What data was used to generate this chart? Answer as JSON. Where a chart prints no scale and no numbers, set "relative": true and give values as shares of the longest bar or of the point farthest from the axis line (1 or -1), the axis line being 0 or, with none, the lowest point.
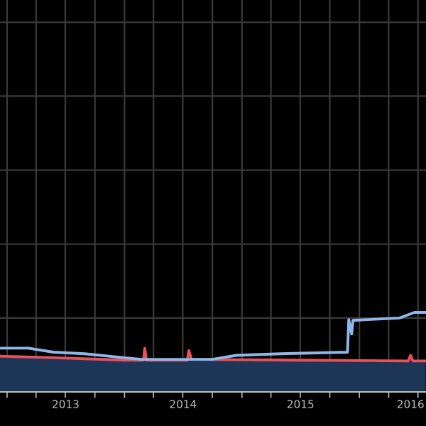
{
  "chart_data": {
    "type": "line",
    "relative": true,
    "grid": true,
    "xlim": [
      "2012-12-10",
      "2016-07-26"
    ],
    "xticks": [
      {
        "value": "2013-07-02",
        "label": "2013"
      },
      {
        "value": "2014-07-02",
        "label": "2014"
      },
      {
        "value": "2015-07-02",
        "label": "2015"
      },
      {
        "value": "2016-06-08",
        "label": "2016"
      }
    ],
    "series": [
      {
        "type": "area",
        "color": "#1d3557",
        "x": [
          "2012-12-10",
          "2014-01-01",
          "2016-07-25"
        ],
        "values": [
          0.44,
          0.4,
          0.39
        ]
      },
      {
        "color": "#e8515b",
        "x": [
          "2012-12-10",
          "2013-06-01",
          "2014-01-01",
          "2014-03-01",
          "2014-03-05",
          "2014-03-10",
          "2014-07-15",
          "2014-07-20",
          "2014-07-28",
          "2015-06-01",
          "2016-06-01",
          "2016-06-08",
          "2016-06-15",
          "2016-07-25"
        ],
        "values": [
          0.45,
          0.43,
          0.4,
          0.4,
          0.55,
          0.4,
          0.4,
          0.52,
          0.41,
          0.4,
          0.39,
          0.46,
          0.39,
          0.39
        ]
      },
      {
        "color": "#8fb8e8",
        "x": [
          "2012-12-10",
          "2013-03-08",
          "2013-05-25",
          "2013-08-30",
          "2014-01-01",
          "2014-02-23",
          "2014-10-01",
          "2014-12-14",
          "2015-05-01",
          "2015-11-25",
          "2015-11-29",
          "2015-12-08",
          "2015-12-12",
          "2016-05-05",
          "2016-06-20",
          "2016-07-25"
        ],
        "values": [
          0.55,
          0.55,
          0.5,
          0.48,
          0.43,
          0.41,
          0.41,
          0.46,
          0.48,
          0.5,
          0.91,
          0.73,
          0.9,
          0.93,
          1.0,
          1.0
        ]
      }
    ]
  }
}
